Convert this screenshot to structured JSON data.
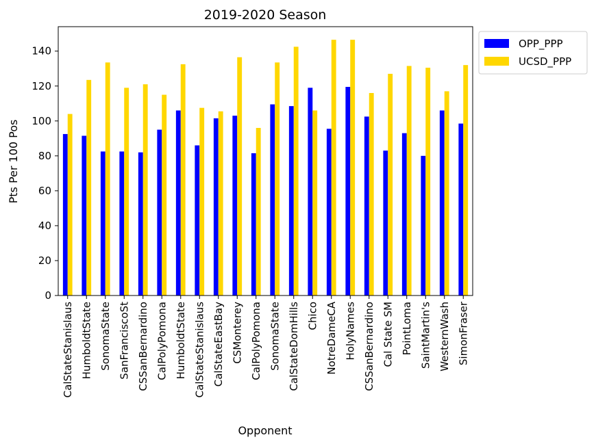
{
  "chart_data": {
    "type": "bar",
    "title": "2019-2020 Season",
    "xlabel": "Opponent",
    "ylabel": "Pts Per 100 Pos",
    "ylim": [
      0,
      154
    ],
    "yticks": [
      0,
      20,
      40,
      60,
      80,
      100,
      120,
      140
    ],
    "grid": false,
    "legend_position": "outside top-right",
    "categories": [
      "CalStateStanislaus",
      "HumboldtState",
      "SonomaState",
      "SanFranciscoSt",
      "CSSanBernardino",
      "CalPolyPomona",
      "HumboldtState",
      "CalStateStanislaus",
      "CalStateEastBay",
      "CSMonterey",
      "CalPolyPomona",
      "SonomaState",
      "CalStateDomHills",
      "Chico",
      "NotreDameCA",
      "HolyNames",
      "CSSanBernardino",
      "Cal State SM",
      "PointLoma",
      "SaintMartin's",
      "WesternWash",
      "SimonFraser"
    ],
    "series": [
      {
        "name": "OPP_PPP",
        "color": "#0000ff",
        "values": [
          92.5,
          91.5,
          82.5,
          82.5,
          82.0,
          95.0,
          106.0,
          86.0,
          101.5,
          103.0,
          81.5,
          109.5,
          108.5,
          119.0,
          95.5,
          119.5,
          102.5,
          83.0,
          93.0,
          80.0,
          106.0,
          98.5
        ]
      },
      {
        "name": "UCSD_PPP",
        "color": "#ffd700",
        "values": [
          104.0,
          123.5,
          133.5,
          119.0,
          121.0,
          115.0,
          132.5,
          107.5,
          105.5,
          136.5,
          96.0,
          133.5,
          142.5,
          106.0,
          146.5,
          146.5,
          116.0,
          127.0,
          131.5,
          130.5,
          117.0,
          132.0
        ]
      }
    ]
  }
}
